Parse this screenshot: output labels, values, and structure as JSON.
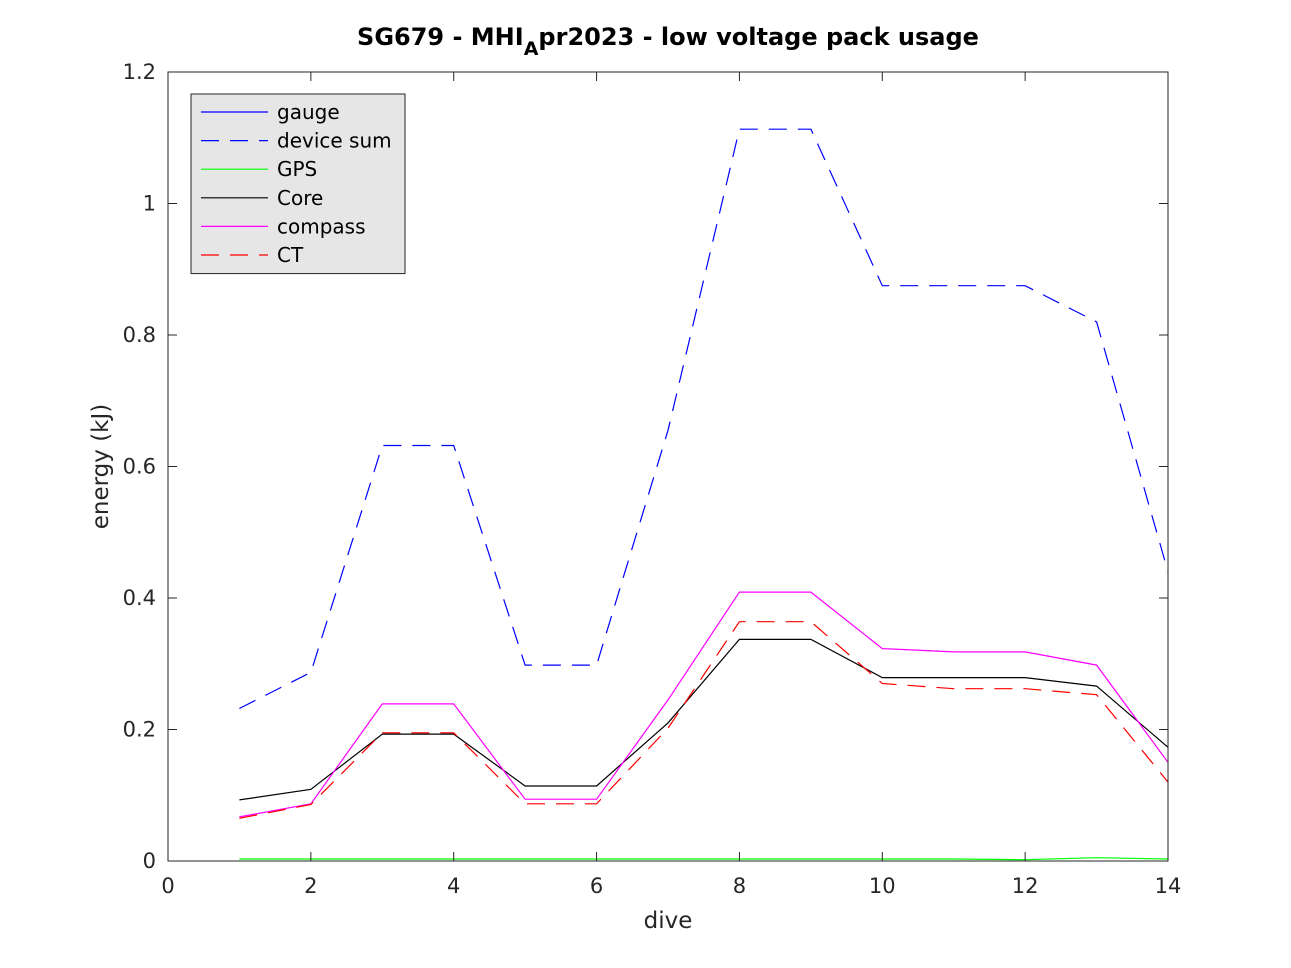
{
  "chart_data": {
    "type": "line",
    "title_main": "SG679 - MHI",
    "title_sub": "A",
    "title_rest": "pr2023 - low voltage pack usage",
    "xlabel": "dive",
    "ylabel": "energy (kJ)",
    "xlim": [
      0,
      14
    ],
    "ylim": [
      0,
      1.2
    ],
    "xticks": [
      0,
      2,
      4,
      6,
      8,
      10,
      12,
      14
    ],
    "yticks": [
      0,
      0.2,
      0.4,
      0.6,
      0.8,
      1,
      1.2
    ],
    "ytick_labels": [
      "0",
      "0.2",
      "0.4",
      "0.6",
      "0.8",
      "1",
      "1.2"
    ],
    "grid": false,
    "legend_position": "top-left",
    "x": [
      1,
      2,
      3,
      4,
      5,
      6,
      7,
      8,
      9,
      10,
      11,
      12,
      13,
      14
    ],
    "series": [
      {
        "name": "gauge",
        "color": "#0000ff",
        "dash": "solid",
        "values": [
          null,
          null,
          null,
          null,
          null,
          null,
          null,
          null,
          null,
          null,
          null,
          null,
          null,
          null
        ]
      },
      {
        "name": "device sum",
        "color": "#0000ff",
        "dash": "dashed",
        "values": [
          0.232,
          0.287,
          0.632,
          0.632,
          0.298,
          0.298,
          0.655,
          1.113,
          1.113,
          0.875,
          0.875,
          0.875,
          0.82,
          0.44
        ]
      },
      {
        "name": "GPS",
        "color": "#00ff00",
        "dash": "solid",
        "values": [
          0.003,
          0.003,
          0.003,
          0.003,
          0.003,
          0.003,
          0.003,
          0.003,
          0.003,
          0.003,
          0.003,
          0.002,
          0.005,
          0.003
        ]
      },
      {
        "name": "Core",
        "color": "#000000",
        "dash": "solid",
        "values": [
          0.093,
          0.109,
          0.193,
          0.193,
          0.114,
          0.114,
          0.21,
          0.337,
          0.337,
          0.279,
          0.279,
          0.279,
          0.266,
          0.173
        ]
      },
      {
        "name": "compass",
        "color": "#ff00ff",
        "dash": "solid",
        "values": [
          0.067,
          0.087,
          0.239,
          0.239,
          0.094,
          0.094,
          0.245,
          0.409,
          0.409,
          0.323,
          0.318,
          0.318,
          0.298,
          0.15
        ]
      },
      {
        "name": "CT",
        "color": "#ff0000",
        "dash": "dashed",
        "values": [
          0.065,
          0.086,
          0.195,
          0.195,
          0.087,
          0.087,
          0.202,
          0.364,
          0.364,
          0.27,
          0.262,
          0.262,
          0.253,
          0.12
        ]
      }
    ]
  }
}
